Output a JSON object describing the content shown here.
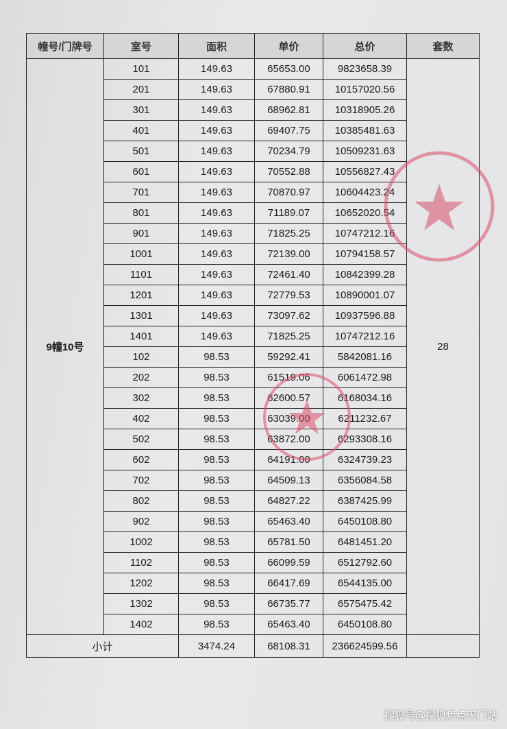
{
  "table": {
    "headers": [
      "幢号/门牌号",
      "室号",
      "面积",
      "单价",
      "总价",
      "套数"
    ],
    "building": "9幢10号",
    "unit_count": "28",
    "rows": [
      [
        "101",
        "149.63",
        "65653.00",
        "9823658.39"
      ],
      [
        "201",
        "149.63",
        "67880.91",
        "10157020.56"
      ],
      [
        "301",
        "149.63",
        "68962.81",
        "10318905.26"
      ],
      [
        "401",
        "149.63",
        "69407.75",
        "10385481.63"
      ],
      [
        "501",
        "149.63",
        "70234.79",
        "10509231.63"
      ],
      [
        "601",
        "149.63",
        "70552.88",
        "10556827.43"
      ],
      [
        "701",
        "149.63",
        "70870.97",
        "10604423.24"
      ],
      [
        "801",
        "149.63",
        "71189.07",
        "10652020.54"
      ],
      [
        "901",
        "149.63",
        "71825.25",
        "10747212.16"
      ],
      [
        "1001",
        "149.63",
        "72139.00",
        "10794158.57"
      ],
      [
        "1101",
        "149.63",
        "72461.40",
        "10842399.28"
      ],
      [
        "1201",
        "149.63",
        "72779.53",
        "10890001.07"
      ],
      [
        "1301",
        "149.63",
        "73097.62",
        "10937596.88"
      ],
      [
        "1401",
        "149.63",
        "71825.25",
        "10747212.16"
      ],
      [
        "102",
        "98.53",
        "59292.41",
        "5842081.16"
      ],
      [
        "202",
        "98.53",
        "61519.06",
        "6061472.98"
      ],
      [
        "302",
        "98.53",
        "62600.57",
        "6168034.16"
      ],
      [
        "402",
        "98.53",
        "63039.00",
        "6211232.67"
      ],
      [
        "502",
        "98.53",
        "63872.00",
        "6293308.16"
      ],
      [
        "602",
        "98.53",
        "64191.00",
        "6324739.23"
      ],
      [
        "702",
        "98.53",
        "64509.13",
        "6356084.58"
      ],
      [
        "802",
        "98.53",
        "64827.22",
        "6387425.99"
      ],
      [
        "902",
        "98.53",
        "65463.40",
        "6450108.80"
      ],
      [
        "1002",
        "98.53",
        "65781.50",
        "6481451.20"
      ],
      [
        "1102",
        "98.53",
        "66099.59",
        "6512792.60"
      ],
      [
        "1202",
        "98.53",
        "66417.69",
        "6544135.00"
      ],
      [
        "1302",
        "98.53",
        "66735.77",
        "6575475.42"
      ],
      [
        "1402",
        "98.53",
        "65463.40",
        "6450108.80"
      ]
    ],
    "subtotal": {
      "label": "小计",
      "area": "3474.24",
      "unit_price": "68108.31",
      "total": "236624599.56"
    }
  },
  "stamps": {
    "color": "#d9506a"
  },
  "watermark": "搜狐号@搜狐焦点天门站"
}
